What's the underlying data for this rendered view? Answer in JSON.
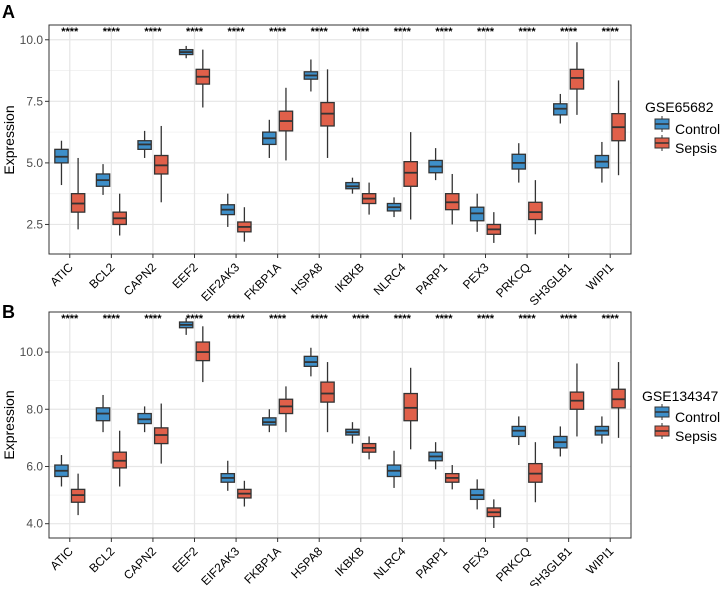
{
  "colors": {
    "control": "#3e8fc9",
    "sepsis": "#e0604a",
    "grid": "#e6e6e6",
    "border": "#333333"
  },
  "chart_data": [
    {
      "panel": "A",
      "type": "box",
      "dataset": "GSE65682",
      "ylabel": "Expression",
      "ylim": [
        1.3,
        10.6
      ],
      "yticks": [
        2.5,
        5.0,
        7.5,
        10.0
      ],
      "ytick_labels": [
        "2.5",
        "5.0",
        "7.5",
        "10.0"
      ],
      "categories": [
        "ATIC",
        "BCL2",
        "CAPN2",
        "EEF2",
        "EIF2AK3",
        "FKBP1A",
        "HSPA8",
        "IKBKB",
        "NLRC4",
        "PARP1",
        "PEX3",
        "PRKCQ",
        "SH3GLB1",
        "WIPI1"
      ],
      "significance": "****",
      "legend": {
        "title": "GSE65682",
        "items": [
          "Control",
          "Sepsis"
        ]
      },
      "series": [
        {
          "name": "Control",
          "boxes": [
            [
              4.1,
              5.0,
              5.25,
              5.55,
              5.9
            ],
            [
              3.7,
              4.05,
              4.3,
              4.55,
              4.95
            ],
            [
              5.2,
              5.55,
              5.75,
              5.9,
              6.3
            ],
            [
              9.25,
              9.4,
              9.5,
              9.6,
              9.75
            ],
            [
              2.4,
              2.9,
              3.1,
              3.3,
              3.75
            ],
            [
              5.2,
              5.75,
              6.0,
              6.25,
              6.75
            ],
            [
              7.9,
              8.4,
              8.55,
              8.7,
              9.2
            ],
            [
              3.75,
              3.95,
              4.05,
              4.2,
              4.4
            ],
            [
              2.8,
              3.05,
              3.2,
              3.35,
              3.6
            ],
            [
              4.3,
              4.6,
              4.85,
              5.1,
              5.6
            ],
            [
              2.2,
              2.65,
              2.95,
              3.2,
              3.75
            ],
            [
              4.2,
              4.75,
              5.0,
              5.35,
              5.8
            ],
            [
              6.6,
              6.95,
              7.2,
              7.4,
              7.8
            ],
            [
              4.2,
              4.8,
              5.05,
              5.3,
              5.85
            ]
          ]
        },
        {
          "name": "Sepsis",
          "boxes": [
            [
              2.3,
              3.0,
              3.35,
              3.75,
              5.2
            ],
            [
              2.05,
              2.5,
              2.75,
              3.0,
              3.75
            ],
            [
              3.4,
              4.55,
              4.9,
              5.3,
              6.5
            ],
            [
              7.25,
              8.2,
              8.5,
              8.8,
              9.6
            ],
            [
              1.8,
              2.2,
              2.4,
              2.6,
              3.2
            ],
            [
              5.1,
              6.3,
              6.7,
              7.1,
              8.05
            ],
            [
              5.2,
              6.5,
              7.0,
              7.45,
              8.8
            ],
            [
              2.9,
              3.35,
              3.55,
              3.75,
              4.2
            ],
            [
              2.7,
              4.05,
              4.6,
              5.05,
              6.25
            ],
            [
              2.5,
              3.1,
              3.4,
              3.75,
              4.55
            ],
            [
              1.75,
              2.1,
              2.3,
              2.5,
              3.0
            ],
            [
              2.1,
              2.7,
              3.0,
              3.4,
              4.3
            ],
            [
              6.95,
              8.0,
              8.45,
              8.8,
              9.9
            ],
            [
              4.5,
              5.9,
              6.45,
              7.0,
              8.35
            ]
          ]
        }
      ]
    },
    {
      "panel": "B",
      "type": "box",
      "dataset": "GSE134347",
      "ylabel": "Expression",
      "ylim": [
        3.5,
        11.4
      ],
      "yticks": [
        4.0,
        6.0,
        8.0,
        10.0
      ],
      "ytick_labels": [
        "4.0",
        "6.0",
        "8.0",
        "10.0"
      ],
      "categories": [
        "ATIC",
        "BCL2",
        "CAPN2",
        "EEF2",
        "EIF2AK3",
        "FKBP1A",
        "HSPA8",
        "IKBKB",
        "NLRC4",
        "PARP1",
        "PEX3",
        "PRKCQ",
        "SH3GLB1",
        "WIPI1"
      ],
      "significance": "****",
      "legend": {
        "title": "GSE134347",
        "items": [
          "Control",
          "Sepsis"
        ]
      },
      "series": [
        {
          "name": "Control",
          "boxes": [
            [
              5.3,
              5.65,
              5.85,
              6.05,
              6.4
            ],
            [
              7.2,
              7.6,
              7.85,
              8.05,
              8.5
            ],
            [
              7.2,
              7.5,
              7.65,
              7.85,
              8.1
            ],
            [
              10.6,
              10.85,
              10.95,
              11.05,
              11.2
            ],
            [
              5.15,
              5.45,
              5.6,
              5.75,
              6.2
            ],
            [
              7.2,
              7.45,
              7.55,
              7.7,
              8.0
            ],
            [
              9.15,
              9.5,
              9.65,
              9.85,
              10.15
            ],
            [
              6.8,
              7.1,
              7.2,
              7.3,
              7.55
            ],
            [
              5.25,
              5.65,
              5.85,
              6.05,
              6.55
            ],
            [
              5.9,
              6.2,
              6.35,
              6.5,
              6.85
            ],
            [
              4.5,
              4.85,
              5.0,
              5.2,
              5.55
            ],
            [
              6.75,
              7.05,
              7.25,
              7.4,
              7.75
            ],
            [
              6.35,
              6.65,
              6.85,
              7.05,
              7.4
            ],
            [
              6.8,
              7.1,
              7.25,
              7.4,
              7.75
            ]
          ]
        },
        {
          "name": "Sepsis",
          "boxes": [
            [
              4.3,
              4.75,
              5.0,
              5.2,
              5.75
            ],
            [
              5.3,
              5.95,
              6.2,
              6.5,
              7.25
            ],
            [
              6.1,
              6.8,
              7.1,
              7.35,
              8.2
            ],
            [
              8.95,
              9.7,
              10.0,
              10.35,
              10.9
            ],
            [
              4.6,
              4.9,
              5.05,
              5.2,
              5.5
            ],
            [
              7.2,
              7.85,
              8.1,
              8.35,
              8.8
            ],
            [
              7.2,
              8.25,
              8.55,
              8.95,
              9.65
            ],
            [
              6.25,
              6.5,
              6.65,
              6.8,
              7.05
            ],
            [
              6.6,
              7.6,
              8.05,
              8.55,
              9.45
            ],
            [
              5.2,
              5.45,
              5.6,
              5.75,
              6.05
            ],
            [
              3.85,
              4.25,
              4.4,
              4.55,
              4.85
            ],
            [
              4.75,
              5.45,
              5.75,
              6.1,
              6.85
            ],
            [
              7.05,
              8.0,
              8.3,
              8.6,
              9.6
            ],
            [
              7.0,
              8.05,
              8.35,
              8.7,
              9.65
            ]
          ]
        }
      ]
    }
  ]
}
